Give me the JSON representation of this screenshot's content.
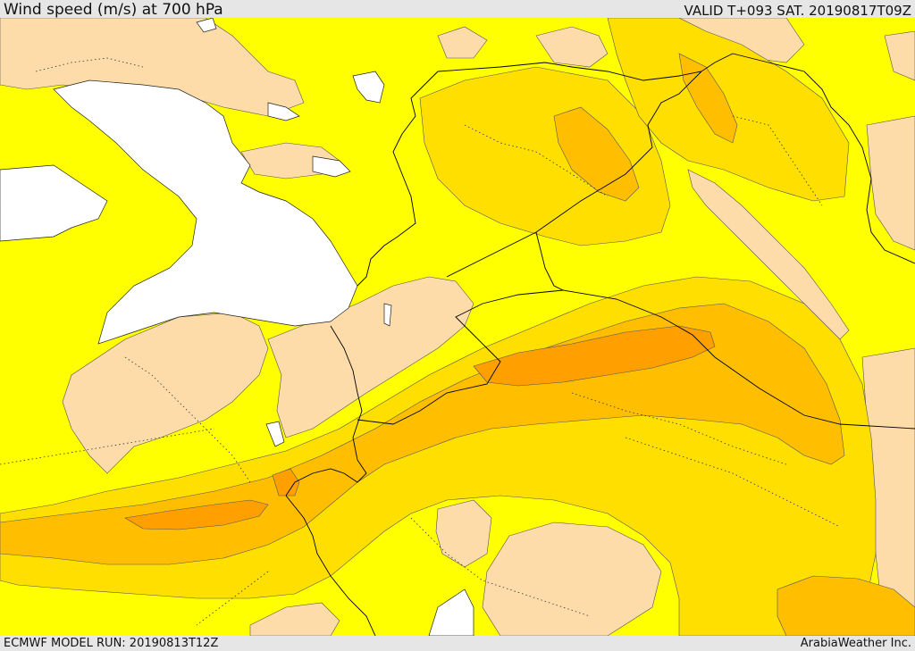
{
  "header": {
    "title": "Wind speed (m/s) at 700 hPa",
    "valid": "VALID T+093 SAT. 20190817T09Z"
  },
  "footer": {
    "model_run": "ECMWF MODEL RUN: 20190813T12Z",
    "credit": "ArabiaWeather Inc."
  },
  "map": {
    "colors": {
      "water": "#ffffff",
      "calm_band": "#fddcaa",
      "band_1": "#ffff00",
      "band_2": "#ffdf00",
      "band_3": "#ffbf00",
      "band_4": "#ff9f00",
      "boundary": "#000000"
    }
  }
}
